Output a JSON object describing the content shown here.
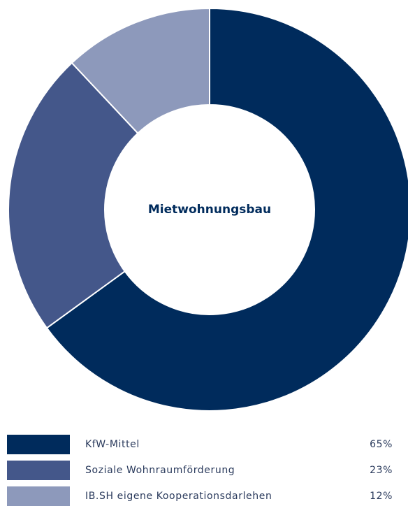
{
  "chart_data": {
    "type": "donut",
    "center_label": "Mietwohnungsbau",
    "categories": [
      "KfW-Mittel",
      "Soziale Wohnraumförderung",
      "IB.SH eigene Kooperationsdarlehen"
    ],
    "values": [
      65,
      23,
      12
    ],
    "value_labels": [
      "65%",
      "23%",
      "12%"
    ],
    "colors": [
      "#002b5c",
      "#44578a",
      "#8d99bb"
    ]
  }
}
